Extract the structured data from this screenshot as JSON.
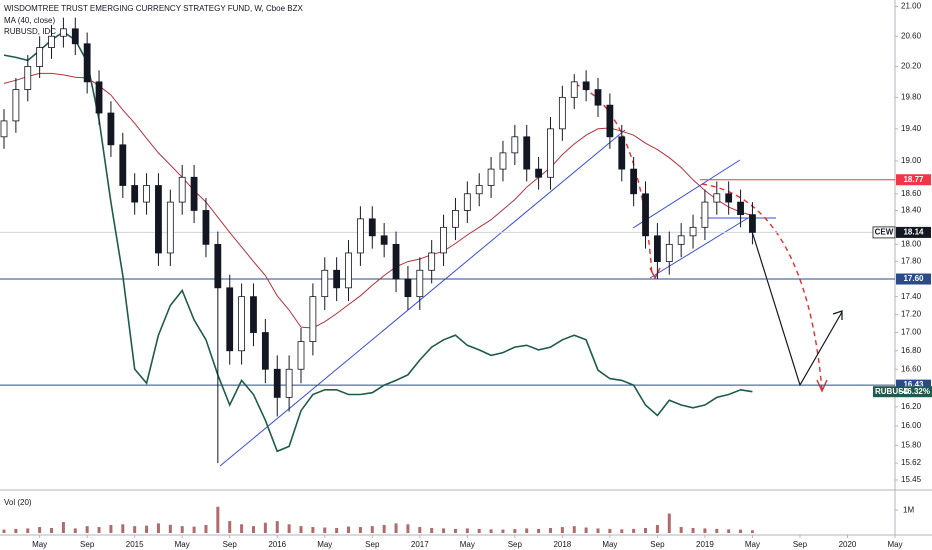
{
  "chart_data": {
    "type": "candlestick",
    "title": "WISDOMTREE TRUST EMERGING CURRENCY STRATEGY FUND, W, Cboe BZX",
    "x": [
      "2014-02",
      "2014-03",
      "2014-04",
      "2014-05",
      "2014-06",
      "2014-07",
      "2014-08",
      "2014-09",
      "2014-10",
      "2014-11",
      "2014-12",
      "2015-01",
      "2015-02",
      "2015-03",
      "2015-04",
      "2015-05",
      "2015-06",
      "2015-07",
      "2015-08",
      "2015-09",
      "2015-10",
      "2015-11",
      "2015-12",
      "2016-01",
      "2016-02",
      "2016-03",
      "2016-04",
      "2016-05",
      "2016-06",
      "2016-07",
      "2016-08",
      "2016-09",
      "2016-10",
      "2016-11",
      "2016-12",
      "2017-01",
      "2017-02",
      "2017-03",
      "2017-04",
      "2017-05",
      "2017-06",
      "2017-07",
      "2017-08",
      "2017-09",
      "2017-10",
      "2017-11",
      "2017-12",
      "2018-01",
      "2018-02",
      "2018-03",
      "2018-04",
      "2018-05",
      "2018-06",
      "2018-07",
      "2018-08",
      "2018-09",
      "2018-10",
      "2018-11",
      "2018-12",
      "2019-01",
      "2019-02",
      "2019-03",
      "2019-04",
      "2019-05"
    ],
    "open": [
      19.3,
      19.5,
      19.9,
      20.2,
      20.45,
      20.6,
      20.7,
      20.5,
      20.0,
      19.6,
      19.2,
      18.7,
      18.5,
      18.7,
      17.9,
      18.5,
      18.8,
      18.4,
      18.0,
      17.5,
      16.8,
      17.4,
      17.0,
      16.6,
      16.3,
      16.6,
      16.9,
      17.4,
      17.7,
      17.5,
      17.9,
      18.3,
      18.1,
      18.0,
      17.6,
      17.4,
      17.7,
      17.9,
      18.2,
      18.4,
      18.6,
      18.7,
      18.9,
      19.1,
      19.3,
      18.9,
      18.8,
      19.4,
      19.8,
      20.0,
      19.9,
      19.7,
      19.3,
      18.9,
      18.6,
      18.1,
      17.8,
      18.0,
      18.1,
      18.2,
      18.5,
      18.6,
      18.5,
      18.35
    ],
    "high": [
      19.65,
      20.05,
      20.35,
      20.6,
      20.75,
      20.85,
      20.85,
      20.65,
      20.15,
      19.75,
      19.35,
      18.85,
      18.85,
      18.85,
      18.65,
      18.95,
      18.95,
      18.55,
      18.15,
      17.65,
      17.55,
      17.55,
      17.15,
      16.75,
      16.75,
      17.05,
      17.55,
      17.85,
      17.85,
      18.05,
      18.45,
      18.45,
      18.25,
      18.15,
      17.75,
      17.85,
      18.05,
      18.35,
      18.55,
      18.75,
      18.85,
      19.05,
      19.25,
      19.45,
      19.45,
      19.05,
      19.55,
      19.95,
      20.1,
      20.15,
      20.05,
      19.85,
      19.45,
      19.05,
      18.75,
      18.25,
      18.15,
      18.25,
      18.35,
      18.65,
      18.75,
      18.75,
      18.65,
      18.5
    ],
    "low": [
      19.15,
      19.35,
      19.75,
      20.05,
      20.3,
      20.45,
      20.35,
      19.85,
      19.45,
      19.05,
      18.55,
      18.35,
      18.35,
      17.75,
      17.75,
      18.35,
      18.25,
      17.85,
      15.62,
      16.65,
      16.65,
      16.85,
      16.45,
      16.1,
      16.15,
      16.45,
      16.75,
      17.25,
      17.35,
      17.35,
      17.75,
      17.95,
      17.85,
      17.45,
      17.25,
      17.25,
      17.55,
      17.75,
      18.05,
      18.25,
      18.45,
      18.55,
      18.75,
      18.95,
      18.75,
      18.65,
      18.65,
      19.25,
      19.65,
      19.75,
      19.55,
      19.15,
      18.75,
      18.45,
      17.95,
      17.6,
      17.65,
      17.85,
      17.95,
      18.05,
      18.35,
      18.35,
      18.2,
      18.0
    ],
    "close": [
      19.5,
      19.9,
      20.2,
      20.45,
      20.6,
      20.7,
      20.5,
      20.0,
      19.6,
      19.2,
      18.7,
      18.5,
      18.7,
      17.9,
      18.5,
      18.8,
      18.4,
      18.0,
      17.5,
      16.8,
      17.4,
      17.0,
      16.6,
      16.3,
      16.6,
      16.9,
      17.4,
      17.7,
      17.5,
      17.9,
      18.3,
      18.1,
      18.0,
      17.6,
      17.4,
      17.7,
      17.9,
      18.2,
      18.4,
      18.6,
      18.7,
      18.9,
      19.1,
      19.3,
      18.9,
      18.8,
      19.4,
      19.8,
      20.0,
      19.9,
      19.7,
      19.3,
      18.9,
      18.6,
      18.1,
      17.8,
      18.0,
      18.1,
      18.2,
      18.5,
      18.6,
      18.5,
      18.35,
      18.14
    ],
    "up_color": "#ffffff",
    "down_color": "#131722",
    "series": [
      {
        "name": "MA (40, close)",
        "color": "#b5323d",
        "values": [
          19.98,
          20.02,
          20.07,
          20.11,
          20.11,
          20.09,
          20.06,
          20.05,
          19.95,
          19.83,
          19.64,
          19.47,
          19.28,
          19.1,
          18.95,
          18.8,
          18.64,
          18.5,
          18.32,
          18.14,
          17.97,
          17.8,
          17.64,
          17.41,
          17.25,
          17.06,
          17.05,
          17.12,
          17.21,
          17.31,
          17.41,
          17.53,
          17.64,
          17.74,
          17.8,
          17.83,
          17.88,
          17.92,
          18.01,
          18.11,
          18.2,
          18.29,
          18.41,
          18.53,
          18.68,
          18.8,
          18.92,
          19.08,
          19.21,
          19.32,
          19.4,
          19.41,
          19.37,
          19.32,
          19.22,
          19.14,
          19.04,
          18.92,
          18.77,
          18.64,
          18.53,
          18.44,
          18.38,
          18.34
        ]
      },
      {
        "name": "RUBUSD, IDC",
        "color": "#1f5b4c",
        "values": [
          20.35,
          20.32,
          20.28,
          20.41,
          20.55,
          20.66,
          20.55,
          20.26,
          19.52,
          18.5,
          17.64,
          16.6,
          16.45,
          16.97,
          17.3,
          17.47,
          17.14,
          16.92,
          16.54,
          16.22,
          16.48,
          16.33,
          16.06,
          15.74,
          15.79,
          16.16,
          16.33,
          16.38,
          16.38,
          16.33,
          16.33,
          16.35,
          16.43,
          16.48,
          16.54,
          16.7,
          16.84,
          16.92,
          16.97,
          16.86,
          16.81,
          16.75,
          16.78,
          16.84,
          16.86,
          16.81,
          16.84,
          16.92,
          16.97,
          16.92,
          16.59,
          16.5,
          16.48,
          16.43,
          16.22,
          16.11,
          16.27,
          16.22,
          16.19,
          16.22,
          16.3,
          16.33,
          16.38,
          16.36
        ]
      }
    ],
    "xlim": [
      "2014-02",
      "2020-05"
    ],
    "xticks": [
      {
        "value": "2014-05",
        "label": "May"
      },
      {
        "value": "2014-09",
        "label": "Sep"
      },
      {
        "value": "2015-01",
        "label": "2015"
      },
      {
        "value": "2015-05",
        "label": "May"
      },
      {
        "value": "2015-09",
        "label": "Sep"
      },
      {
        "value": "2016-01",
        "label": "2016"
      },
      {
        "value": "2016-05",
        "label": "May"
      },
      {
        "value": "2016-09",
        "label": "Sep"
      },
      {
        "value": "2017-01",
        "label": "2017"
      },
      {
        "value": "2017-05",
        "label": "May"
      },
      {
        "value": "2017-09",
        "label": "Sep"
      },
      {
        "value": "2018-01",
        "label": "2018"
      },
      {
        "value": "2018-05",
        "label": "May"
      },
      {
        "value": "2018-09",
        "label": "Sep"
      },
      {
        "value": "2019-01",
        "label": "2019"
      },
      {
        "value": "2019-05",
        "label": "May"
      },
      {
        "value": "2019-09",
        "label": "Sep"
      },
      {
        "value": "2020-01",
        "label": "2020"
      },
      {
        "value": "2020-05",
        "label": "May"
      }
    ],
    "ylim": [
      15.35,
      21.09
    ],
    "log_scale": true,
    "yticks": [
      {
        "value": 21.0,
        "label": "21.00"
      },
      {
        "value": 20.6,
        "label": "20.60"
      },
      {
        "value": 20.2,
        "label": "20.20"
      },
      {
        "value": 19.8,
        "label": "19.80"
      },
      {
        "value": 19.4,
        "label": "19.40"
      },
      {
        "value": 19.0,
        "label": "19.00"
      },
      {
        "value": 18.6,
        "label": "18.60"
      },
      {
        "value": 18.4,
        "label": "18.40"
      },
      {
        "value": 18.0,
        "label": "18.00"
      },
      {
        "value": 17.8,
        "label": "17.80"
      },
      {
        "value": 17.4,
        "label": "17.40"
      },
      {
        "value": 17.2,
        "label": "17.20"
      },
      {
        "value": 17.0,
        "label": "17.00"
      },
      {
        "value": 16.8,
        "label": "16.80"
      },
      {
        "value": 16.6,
        "label": "16.60"
      },
      {
        "value": 16.2,
        "label": "16.20"
      },
      {
        "value": 16.0,
        "label": "16.00"
      },
      {
        "value": 15.8,
        "label": "15.80"
      },
      {
        "value": 15.62,
        "label": "15.62"
      },
      {
        "value": 15.45,
        "label": "15.45"
      }
    ],
    "levels": [
      {
        "value": 18.77,
        "label": "18.77",
        "color": "#f23645"
      },
      {
        "value": 17.6,
        "label": "17.60",
        "color": "#2a4a8a"
      },
      {
        "value": 16.43,
        "label": "16.43",
        "color": "#2a4a8a"
      }
    ],
    "last_price": {
      "name": "CEW",
      "value": 18.14,
      "label": "18.14",
      "color": "#131722"
    },
    "series_label": {
      "name": "RUBUSD",
      "label": "−46.32%",
      "color": "#1f5b4c"
    },
    "volume": {
      "label": "Vol (20)",
      "color": "#b06a6a",
      "values": [
        150000,
        180000,
        200000,
        260000,
        220000,
        480000,
        200000,
        300000,
        260000,
        350000,
        380000,
        300000,
        320000,
        420000,
        360000,
        300000,
        280000,
        350000,
        1150000,
        520000,
        380000,
        300000,
        450000,
        520000,
        380000,
        300000,
        260000,
        240000,
        220000,
        280000,
        260000,
        300000,
        350000,
        420000,
        380000,
        260000,
        220000,
        200000,
        180000,
        200000,
        180000,
        160000,
        150000,
        170000,
        200000,
        180000,
        220000,
        260000,
        300000,
        240000,
        200000,
        180000,
        160000,
        180000,
        220000,
        350000,
        850000,
        260000,
        220000,
        200000,
        180000,
        160000,
        150000,
        120000
      ],
      "ylim": [
        0,
        1750000
      ],
      "yticks": [
        {
          "value": 1000000,
          "label": "1M"
        }
      ]
    }
  }
}
